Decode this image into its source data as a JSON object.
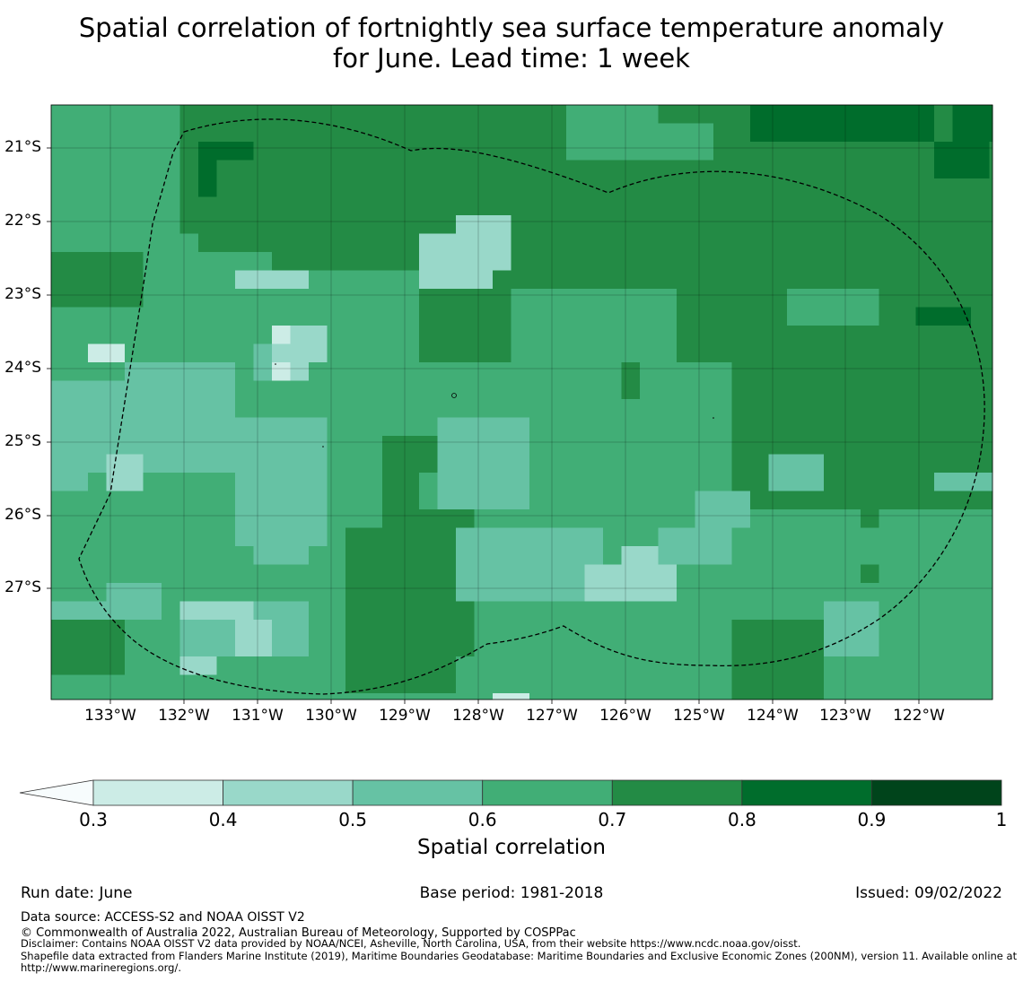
{
  "title_line1": "Spatial correlation of fortnightly sea surface temperature anomaly",
  "title_line2": "for June. Lead time: 1 week",
  "map": {
    "x_ticks": [
      "133°W",
      "132°W",
      "131°W",
      "130°W",
      "129°W",
      "128°W",
      "127°W",
      "126°W",
      "125°W",
      "124°W",
      "123°W",
      "122°W"
    ],
    "y_ticks": [
      "21°S",
      "22°S",
      "23°S",
      "24°S",
      "25°S",
      "26°S",
      "27°S"
    ],
    "lon_range": [
      -133.8,
      -121.0
    ],
    "lat_range": [
      -28.45,
      -20.4
    ],
    "grid": true,
    "boundary": "Exclusive Economic Zone outline (dashed)"
  },
  "colorbar": {
    "label": "Spatial correlation",
    "ticks": [
      "0.3",
      "0.4",
      "0.5",
      "0.6",
      "0.7",
      "0.8",
      "0.9",
      "1"
    ],
    "bins": [
      {
        "min": 0.3,
        "max": 0.4,
        "color": "#ccece6"
      },
      {
        "min": 0.4,
        "max": 0.5,
        "color": "#99d8c9"
      },
      {
        "min": 0.5,
        "max": 0.6,
        "color": "#66c2a4"
      },
      {
        "min": 0.6,
        "max": 0.7,
        "color": "#41ae76"
      },
      {
        "min": 0.7,
        "max": 0.8,
        "color": "#238b45"
      },
      {
        "min": 0.8,
        "max": 0.9,
        "color": "#006d2c"
      },
      {
        "min": 0.9,
        "max": 1.0,
        "color": "#00441b"
      }
    ],
    "under_color": "#f7fcfd",
    "extend": "min"
  },
  "footer": {
    "run_date": "Run date: June",
    "base_period": "Base period: 1981-2018",
    "issued": "Issued: 09/02/2022",
    "data_source": "Data source: ACCESS-S2 and NOAA OISST V2",
    "copyright": "© Commonwealth of Australia 2022, Australian Bureau of Meteorology, Supported by COSPPac",
    "disclaimer_1": "Disclaimer: Contains NOAA OISST V2 data provided by NOAA/NCEI, Asheville, North Carolina, USA, from their website https://www.ncdc.noaa.gov/oisst.",
    "disclaimer_2": "Shapefile data extracted from Flanders Marine Institute (2019), Maritime Boundaries Geodatabase: Maritime Boundaries and Exclusive Economic Zones (200NM), version 11. Available online at http://www.marineregions.org/."
  }
}
